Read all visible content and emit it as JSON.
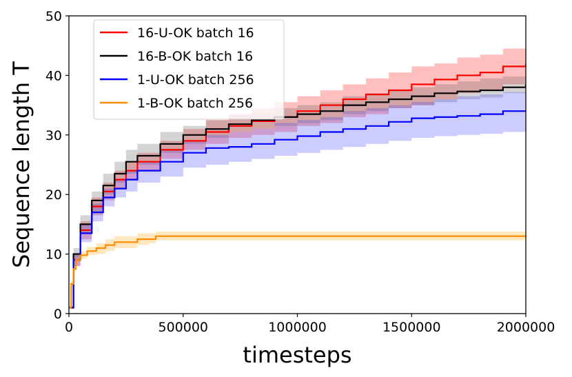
{
  "chart_data": {
    "type": "line",
    "title": "",
    "xlabel": "timesteps",
    "ylabel": "Sequence length T",
    "xlim": [
      0,
      2000000
    ],
    "ylim": [
      0,
      50
    ],
    "xticks": [
      0,
      500000,
      1000000,
      1500000,
      2000000
    ],
    "xtick_labels": [
      "0",
      "500000",
      "1000000",
      "1500000",
      "2000000"
    ],
    "yticks": [
      0,
      10,
      20,
      30,
      40,
      50
    ],
    "ytick_labels": [
      "0",
      "10",
      "20",
      "30",
      "40",
      "50"
    ],
    "grid": false,
    "legend_position": "top-left",
    "shaded_bands": true,
    "series": [
      {
        "name": "16-U-OK batch 16",
        "color": "#ff0000",
        "band_color": "#ff0000",
        "x": [
          0,
          20000,
          50000,
          100000,
          150000,
          200000,
          250000,
          300000,
          400000,
          500000,
          600000,
          700000,
          800000,
          900000,
          1000000,
          1100000,
          1200000,
          1300000,
          1400000,
          1500000,
          1600000,
          1700000,
          1800000,
          1900000,
          2000000
        ],
        "values": [
          1,
          9,
          14,
          18,
          20.5,
          22.5,
          24,
          25.5,
          27.5,
          29,
          30.5,
          31.5,
          32.3,
          33,
          34,
          35,
          36,
          36.8,
          37.5,
          38.5,
          39.3,
          40,
          40.5,
          41.5,
          42
        ],
        "lower": [
          0.8,
          8,
          12.5,
          16.5,
          19,
          21,
          22.5,
          24,
          26,
          27.5,
          28.5,
          29.5,
          30,
          30.5,
          31.5,
          32,
          33,
          33.5,
          34.5,
          35,
          36,
          37,
          37.5,
          38.5,
          39
        ],
        "upper": [
          1.2,
          10,
          15.5,
          19.5,
          22,
          24,
          25.5,
          27,
          29,
          31,
          32.5,
          33.5,
          34.5,
          35.5,
          36.5,
          37.5,
          38.5,
          39.5,
          40.5,
          41.5,
          42,
          43,
          43.5,
          44.5,
          44.5
        ]
      },
      {
        "name": "16-B-OK batch 16",
        "color": "#000000",
        "band_color": "#555555",
        "x": [
          0,
          20000,
          50000,
          100000,
          150000,
          200000,
          250000,
          300000,
          400000,
          500000,
          600000,
          700000,
          800000,
          900000,
          1000000,
          1100000,
          1200000,
          1300000,
          1400000,
          1500000,
          1600000,
          1700000,
          1800000,
          1900000,
          2000000
        ],
        "values": [
          1,
          10,
          15,
          19,
          21.5,
          23.5,
          25.5,
          26.5,
          28.5,
          30,
          31,
          31.8,
          32.5,
          33,
          33.5,
          34,
          35,
          35.5,
          36,
          36.5,
          37,
          37.3,
          37.5,
          38,
          38.5
        ],
        "lower": [
          0.8,
          9,
          13.5,
          17,
          20,
          22,
          23.5,
          25,
          27,
          28.5,
          29.5,
          30.5,
          31,
          31.5,
          32,
          32.5,
          33.5,
          34,
          34.5,
          35,
          35.5,
          36,
          36.3,
          37,
          37.5
        ],
        "upper": [
          1.2,
          11,
          16.5,
          20.5,
          23.5,
          25.5,
          27.5,
          28.5,
          30.5,
          31.5,
          32.5,
          33.5,
          34,
          34.5,
          35,
          35.5,
          36.5,
          37,
          37.5,
          38,
          38.5,
          39,
          39.5,
          39.8,
          40
        ]
      },
      {
        "name": "1-U-OK batch 256",
        "color": "#0000ff",
        "band_color": "#3333ff",
        "x": [
          0,
          20000,
          50000,
          100000,
          150000,
          200000,
          250000,
          300000,
          400000,
          500000,
          600000,
          700000,
          800000,
          900000,
          1000000,
          1100000,
          1200000,
          1300000,
          1400000,
          1500000,
          1600000,
          1700000,
          1800000,
          1900000,
          2000000
        ],
        "values": [
          1,
          9,
          13.5,
          17,
          19.5,
          21,
          22.5,
          24,
          25.5,
          27,
          27.8,
          28,
          28.5,
          29.2,
          29.8,
          30.5,
          31,
          31.5,
          32.2,
          32.8,
          33,
          33.2,
          33.5,
          34,
          34
        ],
        "lower": [
          0.8,
          8,
          12,
          15.5,
          18,
          19.5,
          20.5,
          22,
          23,
          24.5,
          25,
          25.5,
          26,
          26.5,
          27,
          27.5,
          28,
          28.5,
          29,
          29.5,
          29.8,
          30,
          30.2,
          30.5,
          30.5
        ],
        "upper": [
          1.2,
          10,
          15,
          18.5,
          21,
          22.5,
          24,
          25.5,
          27.5,
          29,
          30,
          30.5,
          31,
          32,
          32.5,
          33,
          34,
          34.5,
          35,
          35.5,
          36,
          36.5,
          36.8,
          37.2,
          37.5
        ]
      },
      {
        "name": "1-B-OK batch 256",
        "color": "#ff8c00",
        "band_color": "#ffa500",
        "x": [
          0,
          10000,
          20000,
          30000,
          50000,
          80000,
          120000,
          160000,
          200000,
          250000,
          300000,
          350000,
          380000,
          400000,
          500000,
          1000000,
          1500000,
          2000000
        ],
        "values": [
          1,
          5,
          7.5,
          9,
          9.8,
          10.5,
          11,
          11.5,
          12,
          12,
          12.5,
          12.5,
          13,
          13,
          13,
          13,
          13,
          13
        ],
        "lower": [
          0.8,
          4.5,
          7,
          8.5,
          9.2,
          9.8,
          10,
          10.5,
          11,
          11,
          11.5,
          11.8,
          12.3,
          12.3,
          12.3,
          12.3,
          12.3,
          12.3
        ],
        "upper": [
          1.2,
          5.5,
          8,
          9.5,
          10.5,
          11.2,
          11.8,
          12.5,
          13,
          13,
          13.5,
          13.5,
          13.8,
          13.8,
          13.8,
          13.8,
          13.8,
          13.8
        ]
      }
    ]
  }
}
